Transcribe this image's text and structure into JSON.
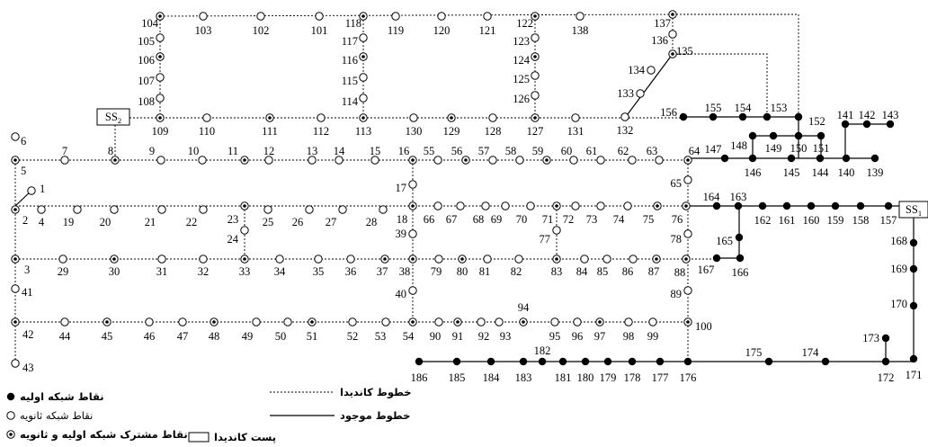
{
  "substations": [
    {
      "id": "ss2",
      "label": "SS",
      "sub": "2"
    },
    {
      "id": "ss1",
      "label": "SS",
      "sub": "1"
    }
  ],
  "nodes": [
    {
      "id": "104",
      "type": "common"
    },
    {
      "id": "103",
      "type": "secondary"
    },
    {
      "id": "102",
      "type": "secondary"
    },
    {
      "id": "101",
      "type": "secondary"
    },
    {
      "id": "118",
      "type": "common"
    },
    {
      "id": "119",
      "type": "secondary"
    },
    {
      "id": "120",
      "type": "secondary"
    },
    {
      "id": "121",
      "type": "secondary"
    },
    {
      "id": "122",
      "type": "common"
    },
    {
      "id": "138",
      "type": "secondary"
    },
    {
      "id": "137",
      "type": "common"
    },
    {
      "id": "105",
      "type": "secondary"
    },
    {
      "id": "106",
      "type": "common"
    },
    {
      "id": "107",
      "type": "secondary"
    },
    {
      "id": "108",
      "type": "secondary"
    },
    {
      "id": "109",
      "type": "common"
    },
    {
      "id": "117",
      "type": "secondary"
    },
    {
      "id": "116",
      "type": "common"
    },
    {
      "id": "115",
      "type": "secondary"
    },
    {
      "id": "114",
      "type": "secondary"
    },
    {
      "id": "113",
      "type": "common"
    },
    {
      "id": "123",
      "type": "secondary"
    },
    {
      "id": "124",
      "type": "common"
    },
    {
      "id": "125",
      "type": "secondary"
    },
    {
      "id": "126",
      "type": "secondary"
    },
    {
      "id": "127",
      "type": "common"
    },
    {
      "id": "136",
      "type": "secondary"
    },
    {
      "id": "135",
      "type": "common"
    },
    {
      "id": "134",
      "type": "secondary"
    },
    {
      "id": "133",
      "type": "secondary"
    },
    {
      "id": "132",
      "type": "secondary"
    },
    {
      "id": "110",
      "type": "secondary"
    },
    {
      "id": "111",
      "type": "common"
    },
    {
      "id": "112",
      "type": "secondary"
    },
    {
      "id": "130",
      "type": "secondary"
    },
    {
      "id": "129",
      "type": "common"
    },
    {
      "id": "128",
      "type": "secondary"
    },
    {
      "id": "131",
      "type": "secondary"
    },
    {
      "id": "156",
      "type": "primary"
    },
    {
      "id": "155",
      "type": "primary"
    },
    {
      "id": "154",
      "type": "primary"
    },
    {
      "id": "153",
      "type": "primary"
    },
    {
      "id": "152",
      "type": "primary"
    },
    {
      "id": "141",
      "type": "primary"
    },
    {
      "id": "142",
      "type": "primary"
    },
    {
      "id": "143",
      "type": "primary"
    },
    {
      "id": "148",
      "type": "primary"
    },
    {
      "id": "149",
      "type": "primary"
    },
    {
      "id": "150",
      "type": "primary"
    },
    {
      "id": "151",
      "type": "primary"
    },
    {
      "id": "6",
      "type": "secondary"
    },
    {
      "id": "5",
      "type": "common"
    },
    {
      "id": "7",
      "type": "secondary"
    },
    {
      "id": "8",
      "type": "common"
    },
    {
      "id": "9",
      "type": "secondary"
    },
    {
      "id": "10",
      "type": "secondary"
    },
    {
      "id": "11",
      "type": "common"
    },
    {
      "id": "12",
      "type": "secondary"
    },
    {
      "id": "13",
      "type": "secondary"
    },
    {
      "id": "14",
      "type": "secondary"
    },
    {
      "id": "15",
      "type": "secondary"
    },
    {
      "id": "16",
      "type": "common"
    },
    {
      "id": "55",
      "type": "secondary"
    },
    {
      "id": "56",
      "type": "common"
    },
    {
      "id": "57",
      "type": "secondary"
    },
    {
      "id": "58",
      "type": "secondary"
    },
    {
      "id": "59",
      "type": "common"
    },
    {
      "id": "60",
      "type": "secondary"
    },
    {
      "id": "61",
      "type": "secondary"
    },
    {
      "id": "62",
      "type": "secondary"
    },
    {
      "id": "63",
      "type": "secondary"
    },
    {
      "id": "64",
      "type": "common"
    },
    {
      "id": "147",
      "type": "primary"
    },
    {
      "id": "146",
      "type": "primary"
    },
    {
      "id": "145",
      "type": "primary"
    },
    {
      "id": "144",
      "type": "primary"
    },
    {
      "id": "140",
      "type": "primary"
    },
    {
      "id": "139",
      "type": "primary"
    },
    {
      "id": "1",
      "type": "secondary"
    },
    {
      "id": "2",
      "type": "common"
    },
    {
      "id": "4",
      "type": "secondary"
    },
    {
      "id": "19",
      "type": "secondary"
    },
    {
      "id": "20",
      "type": "secondary"
    },
    {
      "id": "21",
      "type": "secondary"
    },
    {
      "id": "22",
      "type": "secondary"
    },
    {
      "id": "23",
      "type": "common"
    },
    {
      "id": "25",
      "type": "secondary"
    },
    {
      "id": "26",
      "type": "secondary"
    },
    {
      "id": "27",
      "type": "secondary"
    },
    {
      "id": "28",
      "type": "secondary"
    },
    {
      "id": "18",
      "type": "common"
    },
    {
      "id": "66",
      "type": "secondary"
    },
    {
      "id": "67",
      "type": "secondary"
    },
    {
      "id": "68",
      "type": "secondary"
    },
    {
      "id": "69",
      "type": "secondary"
    },
    {
      "id": "70",
      "type": "secondary"
    },
    {
      "id": "71",
      "type": "common"
    },
    {
      "id": "72",
      "type": "secondary"
    },
    {
      "id": "73",
      "type": "secondary"
    },
    {
      "id": "74",
      "type": "secondary"
    },
    {
      "id": "75",
      "type": "common"
    },
    {
      "id": "76",
      "type": "common"
    },
    {
      "id": "17",
      "type": "secondary"
    },
    {
      "id": "65",
      "type": "secondary"
    },
    {
      "id": "164",
      "type": "primary"
    },
    {
      "id": "163",
      "type": "primary"
    },
    {
      "id": "162",
      "type": "primary"
    },
    {
      "id": "161",
      "type": "primary"
    },
    {
      "id": "160",
      "type": "primary"
    },
    {
      "id": "159",
      "type": "primary"
    },
    {
      "id": "158",
      "type": "primary"
    },
    {
      "id": "157",
      "type": "primary"
    },
    {
      "id": "24",
      "type": "secondary"
    },
    {
      "id": "39",
      "type": "secondary"
    },
    {
      "id": "77",
      "type": "secondary"
    },
    {
      "id": "78",
      "type": "secondary"
    },
    {
      "id": "3",
      "type": "common"
    },
    {
      "id": "29",
      "type": "secondary"
    },
    {
      "id": "30",
      "type": "common"
    },
    {
      "id": "31",
      "type": "secondary"
    },
    {
      "id": "32",
      "type": "secondary"
    },
    {
      "id": "33",
      "type": "common"
    },
    {
      "id": "34",
      "type": "secondary"
    },
    {
      "id": "35",
      "type": "secondary"
    },
    {
      "id": "36",
      "type": "secondary"
    },
    {
      "id": "37",
      "type": "common"
    },
    {
      "id": "38",
      "type": "common"
    },
    {
      "id": "79",
      "type": "secondary"
    },
    {
      "id": "80",
      "type": "common"
    },
    {
      "id": "81",
      "type": "secondary"
    },
    {
      "id": "82",
      "type": "secondary"
    },
    {
      "id": "83",
      "type": "common"
    },
    {
      "id": "84",
      "type": "secondary"
    },
    {
      "id": "85",
      "type": "secondary"
    },
    {
      "id": "86",
      "type": "secondary"
    },
    {
      "id": "87",
      "type": "common"
    },
    {
      "id": "88",
      "type": "common"
    },
    {
      "id": "165",
      "type": "primary"
    },
    {
      "id": "167",
      "type": "primary"
    },
    {
      "id": "166",
      "type": "primary"
    },
    {
      "id": "168",
      "type": "primary"
    },
    {
      "id": "169",
      "type": "primary"
    },
    {
      "id": "170",
      "type": "primary"
    },
    {
      "id": "171",
      "type": "primary"
    },
    {
      "id": "41",
      "type": "secondary"
    },
    {
      "id": "40",
      "type": "secondary"
    },
    {
      "id": "89",
      "type": "secondary"
    },
    {
      "id": "42",
      "type": "common"
    },
    {
      "id": "44",
      "type": "secondary"
    },
    {
      "id": "45",
      "type": "common"
    },
    {
      "id": "46",
      "type": "secondary"
    },
    {
      "id": "47",
      "type": "secondary"
    },
    {
      "id": "48",
      "type": "common"
    },
    {
      "id": "49",
      "type": "secondary"
    },
    {
      "id": "50",
      "type": "secondary"
    },
    {
      "id": "51",
      "type": "common"
    },
    {
      "id": "52",
      "type": "secondary"
    },
    {
      "id": "53",
      "type": "secondary"
    },
    {
      "id": "54",
      "type": "common"
    },
    {
      "id": "90",
      "type": "secondary"
    },
    {
      "id": "91",
      "type": "common"
    },
    {
      "id": "92",
      "type": "secondary"
    },
    {
      "id": "93",
      "type": "secondary"
    },
    {
      "id": "94",
      "type": "common"
    },
    {
      "id": "95",
      "type": "secondary"
    },
    {
      "id": "96",
      "type": "secondary"
    },
    {
      "id": "97",
      "type": "common"
    },
    {
      "id": "98",
      "type": "secondary"
    },
    {
      "id": "99",
      "type": "secondary"
    },
    {
      "id": "100",
      "type": "common"
    },
    {
      "id": "43",
      "type": "secondary"
    },
    {
      "id": "173",
      "type": "primary"
    },
    {
      "id": "186",
      "type": "primary"
    },
    {
      "id": "185",
      "type": "primary"
    },
    {
      "id": "184",
      "type": "primary"
    },
    {
      "id": "183",
      "type": "primary"
    },
    {
      "id": "182",
      "type": "primary"
    },
    {
      "id": "181",
      "type": "primary"
    },
    {
      "id": "180",
      "type": "primary"
    },
    {
      "id": "179",
      "type": "primary"
    },
    {
      "id": "178",
      "type": "primary"
    },
    {
      "id": "177",
      "type": "primary"
    },
    {
      "id": "176",
      "type": "primary"
    },
    {
      "id": "175",
      "type": "primary"
    },
    {
      "id": "174",
      "type": "primary"
    },
    {
      "id": "172",
      "type": "primary"
    }
  ],
  "legend": {
    "candidate_lines": "خطوط کاندیدا",
    "existing_lines": "خطوط موجود",
    "candidate_substation": "پست کاندیدا",
    "primary_points": "نقاط شبکه اولیه",
    "secondary_points": "نقاط شبکه ثانویه",
    "common_points": "نقاط مشترک شبکه اولیه و ثانویه"
  }
}
